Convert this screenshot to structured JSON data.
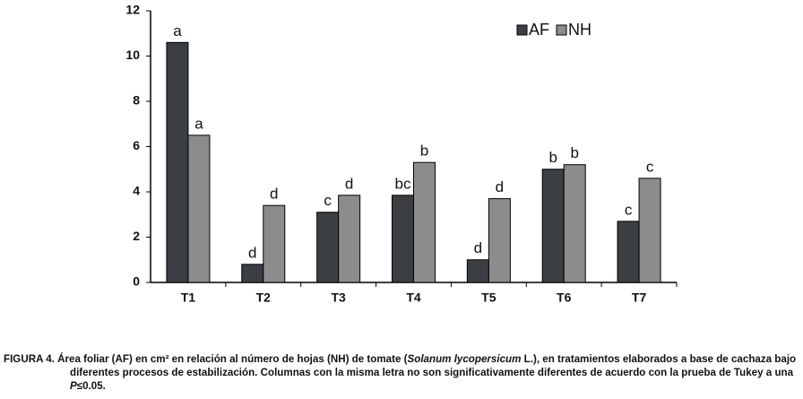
{
  "chart_data": {
    "type": "bar",
    "categories": [
      "T1",
      "T2",
      "T3",
      "T4",
      "T5",
      "T6",
      "T7"
    ],
    "series": [
      {
        "name": "AF",
        "color": "#3b3e42",
        "values": [
          10.6,
          0.8,
          3.1,
          3.85,
          1.0,
          5.0,
          2.7
        ],
        "labels": [
          "a",
          "d",
          "c",
          "bc",
          "d",
          "b",
          "c"
        ]
      },
      {
        "name": "NH",
        "color": "#8c8c8c",
        "values": [
          6.5,
          3.4,
          3.85,
          5.3,
          3.7,
          5.2,
          4.6
        ],
        "labels": [
          "a",
          "d",
          "d",
          "b",
          "d",
          "b",
          "c"
        ]
      }
    ],
    "ylim": [
      0,
      12
    ],
    "yticks": [
      0,
      2,
      4,
      6,
      8,
      10,
      12
    ],
    "grid": false,
    "legend": "top-right"
  },
  "caption": [
    "FIGURA 4. Área foliar (AF) en cm² en relación al número de hojas (NH)  de tomate (",
    "Solanum lycopersicum",
    " L.), en tratamientos elaborados a base de cachaza bajo diferentes procesos de estabilización. Columnas con la misma letra no son significativamente diferentes de acuerdo con la prueba de Tukey a una ",
    "P",
    "≤0.05."
  ]
}
